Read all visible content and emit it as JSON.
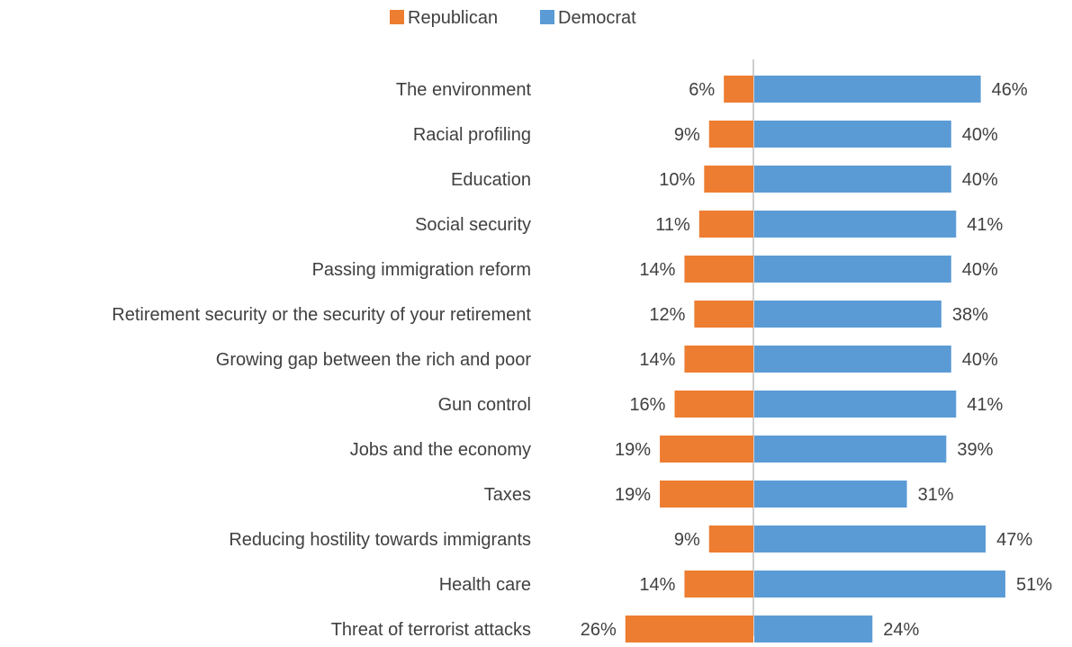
{
  "chart_data": {
    "type": "bar",
    "orientation": "horizontal",
    "layout": "diverging",
    "categories": [
      "The environment",
      "Racial profiling",
      "Education",
      "Social security",
      "Passing immigration reform",
      "Retirement security or the security of your retirement",
      "Growing gap between the rich and poor",
      "Gun control",
      "Jobs and the economy",
      "Taxes",
      "Reducing hostility towards immigrants",
      "Health care",
      "Threat of terrorist attacks"
    ],
    "series": [
      {
        "name": "Republican",
        "color": "#ED7D31",
        "values": [
          6,
          9,
          10,
          11,
          14,
          12,
          14,
          16,
          19,
          19,
          9,
          14,
          26
        ]
      },
      {
        "name": "Democrat",
        "color": "#5B9BD5",
        "values": [
          46,
          40,
          40,
          41,
          40,
          38,
          40,
          41,
          39,
          31,
          47,
          51,
          24
        ]
      }
    ],
    "data_labels": {
      "Republican": [
        "6%",
        "9%",
        "10%",
        "11%",
        "14%",
        "12%",
        "14%",
        "16%",
        "19%",
        "19%",
        "9%",
        "14%",
        "26%"
      ],
      "Democrat": [
        "46%",
        "40%",
        "40%",
        "41%",
        "40%",
        "38%",
        "40%",
        "41%",
        "39%",
        "31%",
        "47%",
        "51%",
        "24%"
      ]
    },
    "value_unit": "%",
    "legend_position": "top-center",
    "grid": false,
    "axis_color": "#BFBFBF"
  }
}
